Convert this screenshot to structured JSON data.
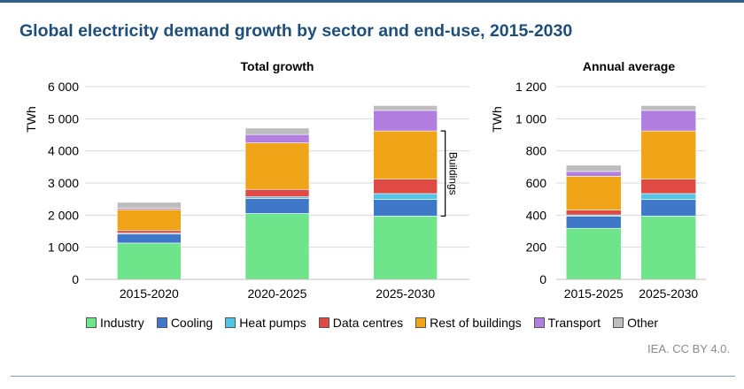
{
  "title": "Global electricity demand growth by sector and end-use, 2015-2030",
  "credit": "IEA. CC BY 4.0.",
  "colors": {
    "Industry": "#6ee58a",
    "Cooling": "#3f78c8",
    "Heat pumps": "#4fc6e8",
    "Data centres": "#e04a44",
    "Rest of buildings": "#f0a418",
    "Transport": "#b27ee0",
    "Other": "#bdbdbd"
  },
  "legend": [
    "Industry",
    "Cooling",
    "Heat pumps",
    "Data centres",
    "Rest of buildings",
    "Transport",
    "Other"
  ],
  "chart_data": [
    {
      "type": "bar",
      "stacked": true,
      "title": "Total  growth",
      "ylabel": "TWh",
      "ylim": [
        0,
        6000
      ],
      "yticks": [
        0,
        1000,
        2000,
        3000,
        4000,
        5000,
        6000
      ],
      "ytick_labels": [
        "0",
        "1 000",
        "2 000",
        "3 000",
        "4 000",
        "5 000",
        "6 000"
      ],
      "categories": [
        "2015-2020",
        "2020-2025",
        "2025-2030"
      ],
      "series": [
        {
          "name": "Industry",
          "values": [
            1130,
            2050,
            1970
          ]
        },
        {
          "name": "Cooling",
          "values": [
            280,
            470,
            520
          ]
        },
        {
          "name": "Heat pumps",
          "values": [
            30,
            50,
            180
          ]
        },
        {
          "name": "Data centres",
          "values": [
            80,
            230,
            450
          ]
        },
        {
          "name": "Rest of buildings",
          "values": [
            650,
            1450,
            1500
          ]
        },
        {
          "name": "Transport",
          "values": [
            40,
            260,
            640
          ]
        },
        {
          "name": "Other",
          "values": [
            190,
            200,
            150
          ]
        }
      ],
      "annotation": {
        "text": "Buildings",
        "category": "2025-2030",
        "from_value": 1970,
        "to_value": 4620
      }
    },
    {
      "type": "bar",
      "stacked": true,
      "title": "Annual average",
      "ylabel": "TWh",
      "ylim": [
        0,
        1200
      ],
      "yticks": [
        0,
        200,
        400,
        600,
        800,
        1000,
        1200
      ],
      "ytick_labels": [
        "0",
        "200",
        "400",
        "600",
        "800",
        "1 000",
        "1 200"
      ],
      "categories": [
        "2015-2025",
        "2025-2030"
      ],
      "series": [
        {
          "name": "Industry",
          "values": [
            318,
            394
          ]
        },
        {
          "name": "Cooling",
          "values": [
            75,
            104
          ]
        },
        {
          "name": "Heat pumps",
          "values": [
            8,
            36
          ]
        },
        {
          "name": "Data centres",
          "values": [
            31,
            90
          ]
        },
        {
          "name": "Rest of buildings",
          "values": [
            210,
            300
          ]
        },
        {
          "name": "Transport",
          "values": [
            30,
            128
          ]
        },
        {
          "name": "Other",
          "values": [
            39,
            30
          ]
        }
      ]
    }
  ]
}
